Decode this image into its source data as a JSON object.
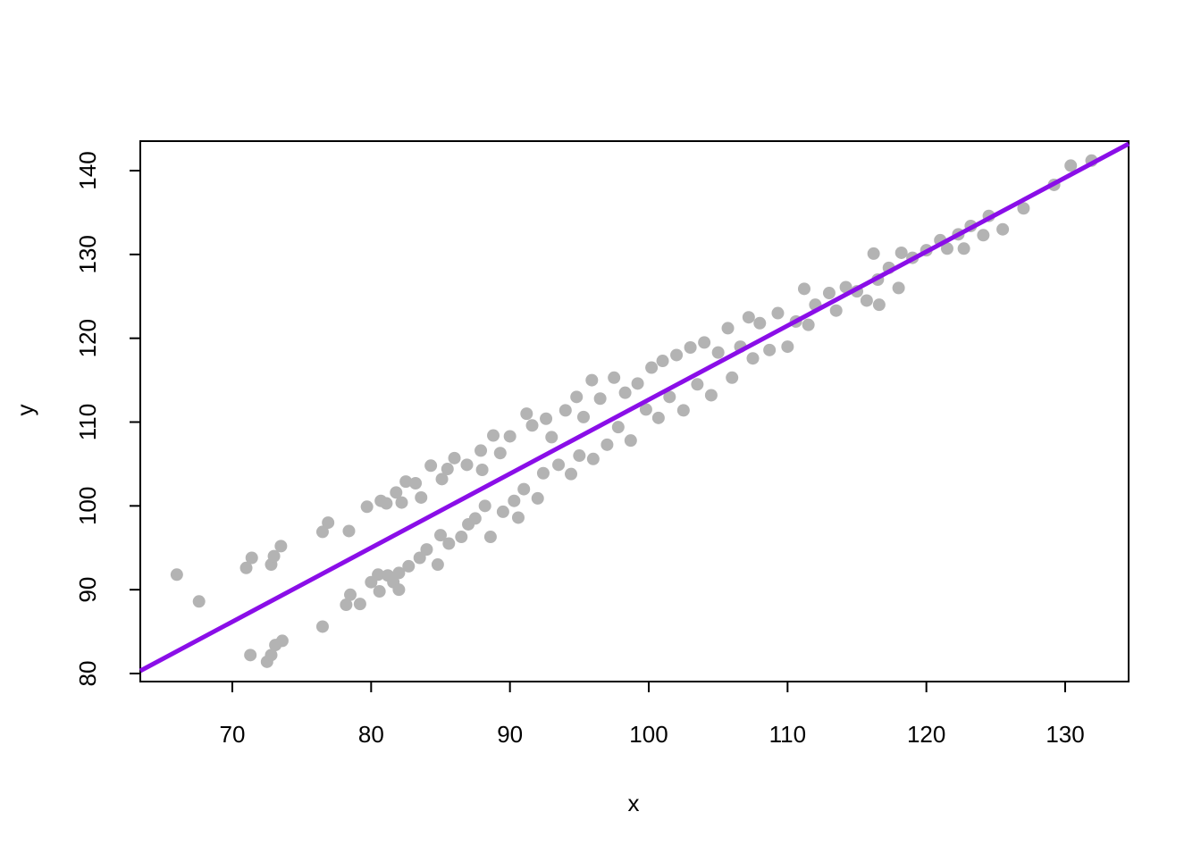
{
  "chart_data": {
    "type": "scatter",
    "xlabel": "x",
    "ylabel": "y",
    "xlim": [
      63.37,
      134.57
    ],
    "ylim": [
      79.04,
      143.52
    ],
    "xticks": [
      70,
      80,
      90,
      100,
      110,
      120,
      130
    ],
    "yticks": [
      80,
      90,
      100,
      110,
      120,
      130,
      140
    ],
    "series": [
      {
        "color": "#b3b3b3",
        "x": [
          66.0,
          67.6,
          71.0,
          71.4,
          71.3,
          72.5,
          72.8,
          72.8,
          73.0,
          73.1,
          73.5,
          73.6,
          76.5,
          76.5,
          76.9,
          78.2,
          78.5,
          78.4,
          79.2,
          79.7,
          80.0,
          80.5,
          80.7,
          80.6,
          81.2,
          81.1,
          81.6,
          82.0,
          81.8,
          82.2,
          82.0,
          82.5,
          82.7,
          83.2,
          83.6,
          83.5,
          84.0,
          84.3,
          84.8,
          85.0,
          85.1,
          85.5,
          85.6,
          86.0,
          86.5,
          86.9,
          87.0,
          87.5,
          87.9,
          88.0,
          88.2,
          88.6,
          88.8,
          89.3,
          89.5,
          90.0,
          90.3,
          90.6,
          91.0,
          91.2,
          91.6,
          92.0,
          92.4,
          92.6,
          93.0,
          93.5,
          94.0,
          94.4,
          94.8,
          95.0,
          95.3,
          95.9,
          96.0,
          96.5,
          97.0,
          97.5,
          97.8,
          98.3,
          98.7,
          99.2,
          99.8,
          100.2,
          100.7,
          101.0,
          101.5,
          102.0,
          102.5,
          103.0,
          103.5,
          104.0,
          104.5,
          105.0,
          105.7,
          106.0,
          106.6,
          107.2,
          107.5,
          108.0,
          108.7,
          109.3,
          110.0,
          110.6,
          111.2,
          111.5,
          112.0,
          113.0,
          113.5,
          114.2,
          115.0,
          115.7,
          116.2,
          116.5,
          116.6,
          117.3,
          118.0,
          118.2,
          119.0,
          120.0,
          121.0,
          121.5,
          122.3,
          122.7,
          123.2,
          124.1,
          124.5,
          125.5,
          127.0,
          129.2,
          130.4,
          131.9
        ],
        "values": [
          91.8,
          88.6,
          92.6,
          93.8,
          82.2,
          81.4,
          82.2,
          93.0,
          94.0,
          83.4,
          95.2,
          83.9,
          85.6,
          96.9,
          98.0,
          88.2,
          89.4,
          97.0,
          88.3,
          99.9,
          90.9,
          91.8,
          100.6,
          89.8,
          91.7,
          100.3,
          90.9,
          90.0,
          101.6,
          100.4,
          92.0,
          102.9,
          92.8,
          102.7,
          101.0,
          93.8,
          94.8,
          104.8,
          93.0,
          96.5,
          103.2,
          104.4,
          95.5,
          105.7,
          96.3,
          104.9,
          97.8,
          98.5,
          106.6,
          104.3,
          100.0,
          96.3,
          108.4,
          106.3,
          99.3,
          108.3,
          100.6,
          98.6,
          102.0,
          111.0,
          109.6,
          100.9,
          103.9,
          110.4,
          108.2,
          104.9,
          111.4,
          103.8,
          113.0,
          106.0,
          110.6,
          115.0,
          105.6,
          112.8,
          107.3,
          115.3,
          109.4,
          113.5,
          107.8,
          114.6,
          111.5,
          116.5,
          110.5,
          117.3,
          113.0,
          118.0,
          111.4,
          118.9,
          114.5,
          119.5,
          113.2,
          118.3,
          121.2,
          115.3,
          119.0,
          122.5,
          117.6,
          121.8,
          118.6,
          123.0,
          119.0,
          122.0,
          125.9,
          121.6,
          124.0,
          125.4,
          123.3,
          126.1,
          125.6,
          124.5,
          130.1,
          127.0,
          124.0,
          128.4,
          126.0,
          130.2,
          129.6,
          130.5,
          131.7,
          130.7,
          132.4,
          130.7,
          133.4,
          132.3,
          134.6,
          133.0,
          135.5,
          138.3,
          140.6,
          141.2
        ]
      }
    ],
    "fit_line": {
      "color": "#8a0ee8",
      "x": [
        63.37,
        134.57
      ],
      "values": [
        80.32,
        143.2
      ]
    }
  }
}
